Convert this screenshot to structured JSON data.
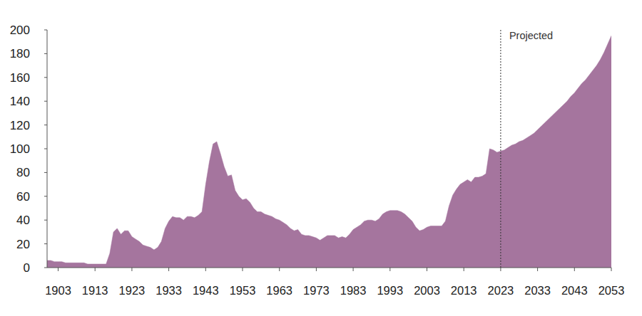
{
  "chart_data": {
    "type": "area",
    "color": "#a5759e",
    "grid": false,
    "x": [
      1900,
      1901,
      1902,
      1903,
      1904,
      1905,
      1906,
      1907,
      1908,
      1909,
      1910,
      1911,
      1912,
      1913,
      1914,
      1915,
      1916,
      1917,
      1918,
      1919,
      1920,
      1921,
      1922,
      1923,
      1924,
      1925,
      1926,
      1927,
      1928,
      1929,
      1930,
      1931,
      1932,
      1933,
      1934,
      1935,
      1936,
      1937,
      1938,
      1939,
      1940,
      1941,
      1942,
      1943,
      1944,
      1945,
      1946,
      1947,
      1948,
      1949,
      1950,
      1951,
      1952,
      1953,
      1954,
      1955,
      1956,
      1957,
      1958,
      1959,
      1960,
      1961,
      1962,
      1963,
      1964,
      1965,
      1966,
      1967,
      1968,
      1969,
      1970,
      1971,
      1972,
      1973,
      1974,
      1975,
      1976,
      1977,
      1978,
      1979,
      1980,
      1981,
      1982,
      1983,
      1984,
      1985,
      1986,
      1987,
      1988,
      1989,
      1990,
      1991,
      1992,
      1993,
      1994,
      1995,
      1996,
      1997,
      1998,
      1999,
      2000,
      2001,
      2002,
      2003,
      2004,
      2005,
      2006,
      2007,
      2008,
      2009,
      2010,
      2011,
      2012,
      2013,
      2014,
      2015,
      2016,
      2017,
      2018,
      2019,
      2020,
      2021,
      2022,
      2023,
      2024,
      2025,
      2026,
      2027,
      2028,
      2029,
      2030,
      2031,
      2032,
      2033,
      2034,
      2035,
      2036,
      2037,
      2038,
      2039,
      2040,
      2041,
      2042,
      2043,
      2044,
      2045,
      2046,
      2047,
      2048,
      2049,
      2050,
      2051,
      2052,
      2053
    ],
    "values": [
      6,
      6,
      5,
      5,
      5,
      4,
      4,
      4,
      4,
      4,
      4,
      3,
      3,
      3,
      3,
      3,
      3,
      12,
      30,
      33,
      28,
      31,
      31,
      26,
      24,
      22,
      19,
      18,
      17,
      15,
      17,
      22,
      33,
      39,
      43,
      42,
      42,
      40,
      43,
      43,
      42,
      44,
      47,
      70,
      89,
      104,
      106,
      96,
      85,
      77,
      78,
      65,
      60,
      57,
      58,
      55,
      50,
      47,
      47,
      45,
      44,
      43,
      41,
      40,
      38,
      36,
      33,
      31,
      32,
      28,
      27,
      27,
      26,
      25,
      23,
      25,
      27,
      27,
      27,
      25,
      26,
      25,
      28,
      32,
      34,
      36,
      39,
      40,
      40,
      39,
      41,
      45,
      47,
      48,
      48,
      48,
      47,
      45,
      42,
      39,
      34,
      31,
      32,
      34,
      35,
      35,
      35,
      35,
      39,
      52,
      61,
      66,
      70,
      72,
      74,
      72,
      76,
      76,
      77,
      79,
      100,
      99,
      97,
      98,
      99,
      101,
      103,
      104,
      106,
      107,
      109,
      111,
      113,
      116,
      119,
      122,
      125,
      128,
      131,
      134,
      137,
      140,
      144,
      147,
      151,
      155,
      158,
      162,
      166,
      170,
      175,
      181,
      188,
      195
    ],
    "xlim": [
      1900,
      2053
    ],
    "xticks": [
      1903,
      1913,
      1923,
      1933,
      1943,
      1953,
      1963,
      1973,
      1983,
      1993,
      2003,
      2013,
      2023,
      2033,
      2043,
      2053
    ],
    "ylim": [
      0,
      200
    ],
    "yticks": [
      0,
      20,
      40,
      60,
      80,
      100,
      120,
      140,
      160,
      180,
      200
    ],
    "annotations": [
      {
        "text": "Projected",
        "x": 2023
      }
    ]
  }
}
